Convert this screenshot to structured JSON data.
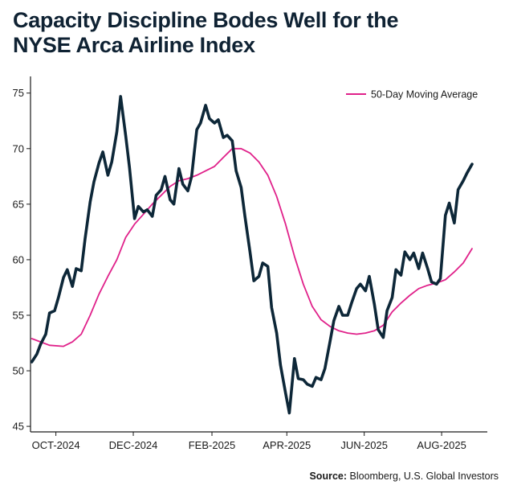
{
  "title_line1": "Capacity Discipline Bodes Well for the",
  "title_line2": "NYSE Arca Airline Index",
  "source_label": "Source:",
  "source_text": "Bloomberg, U.S. Global Investors",
  "colors": {
    "index_line": "#0d2738",
    "moving_average": "#e0218a",
    "axis": "#1a1a1a",
    "title": "#0f2233"
  },
  "chart_data": {
    "type": "line",
    "title": "Capacity Discipline Bodes Well for the NYSE Arca Airline Index",
    "xlabel": "",
    "ylabel": "",
    "ylim": [
      44.5,
      76.5
    ],
    "yticks": [
      45,
      50,
      55,
      60,
      65,
      70,
      75
    ],
    "xticks": [
      "OCT-2024",
      "DEC-2024",
      "FEB-2025",
      "APR-2025",
      "JUN-2025",
      "AUG-2025"
    ],
    "grid": false,
    "legend_position": "top-right",
    "series": [
      {
        "name": "",
        "color": "#0d2738",
        "points": [
          [
            "2024-09-12",
            50.8
          ],
          [
            "2024-09-16",
            51.5
          ],
          [
            "2024-09-19",
            52.4
          ],
          [
            "2024-09-23",
            53.3
          ],
          [
            "2024-09-26",
            55.2
          ],
          [
            "2024-09-30",
            55.4
          ],
          [
            "2024-10-03",
            56.6
          ],
          [
            "2024-10-07",
            58.4
          ],
          [
            "2024-10-10",
            59.1
          ],
          [
            "2024-10-14",
            57.6
          ],
          [
            "2024-10-17",
            59.2
          ],
          [
            "2024-10-21",
            59.0
          ],
          [
            "2024-10-24",
            61.9
          ],
          [
            "2024-10-28",
            65.2
          ],
          [
            "2024-10-31",
            67.0
          ],
          [
            "2024-11-04",
            68.7
          ],
          [
            "2024-11-07",
            69.7
          ],
          [
            "2024-11-11",
            67.6
          ],
          [
            "2024-11-14",
            68.8
          ],
          [
            "2024-11-18",
            71.5
          ],
          [
            "2024-11-21",
            74.7
          ],
          [
            "2024-11-25",
            71.2
          ],
          [
            "2024-11-28",
            68.3
          ],
          [
            "2024-12-02",
            63.7
          ],
          [
            "2024-12-05",
            64.8
          ],
          [
            "2024-12-09",
            64.3
          ],
          [
            "2024-12-12",
            64.5
          ],
          [
            "2024-12-16",
            63.9
          ],
          [
            "2024-12-19",
            65.8
          ],
          [
            "2024-12-23",
            66.3
          ],
          [
            "2024-12-26",
            67.5
          ],
          [
            "2024-12-30",
            65.4
          ],
          [
            "2025-01-02",
            65.0
          ],
          [
            "2025-01-06",
            68.2
          ],
          [
            "2025-01-09",
            66.8
          ],
          [
            "2025-01-13",
            66.2
          ],
          [
            "2025-01-16",
            67.5
          ],
          [
            "2025-01-20",
            71.7
          ],
          [
            "2025-01-23",
            72.3
          ],
          [
            "2025-01-27",
            73.9
          ],
          [
            "2025-01-30",
            72.7
          ],
          [
            "2025-02-03",
            72.3
          ],
          [
            "2025-02-06",
            72.6
          ],
          [
            "2025-02-10",
            71.0
          ],
          [
            "2025-02-13",
            71.2
          ],
          [
            "2025-02-17",
            70.7
          ],
          [
            "2025-02-20",
            68.0
          ],
          [
            "2025-02-24",
            66.5
          ],
          [
            "2025-02-27",
            63.9
          ],
          [
            "2025-03-03",
            60.7
          ],
          [
            "2025-03-06",
            58.1
          ],
          [
            "2025-03-10",
            58.5
          ],
          [
            "2025-03-13",
            59.7
          ],
          [
            "2025-03-17",
            59.4
          ],
          [
            "2025-03-20",
            55.7
          ],
          [
            "2025-03-24",
            53.4
          ],
          [
            "2025-03-27",
            50.5
          ],
          [
            "2025-03-31",
            48.0
          ],
          [
            "2025-04-03",
            46.2
          ],
          [
            "2025-04-07",
            51.1
          ],
          [
            "2025-04-10",
            49.3
          ],
          [
            "2025-04-14",
            49.2
          ],
          [
            "2025-04-17",
            48.8
          ],
          [
            "2025-04-21",
            48.6
          ],
          [
            "2025-04-24",
            49.4
          ],
          [
            "2025-04-28",
            49.2
          ],
          [
            "2025-05-01",
            50.2
          ],
          [
            "2025-05-05",
            52.6
          ],
          [
            "2025-05-08",
            54.5
          ],
          [
            "2025-05-12",
            55.8
          ],
          [
            "2025-05-15",
            55.0
          ],
          [
            "2025-05-19",
            55.0
          ],
          [
            "2025-05-22",
            56.1
          ],
          [
            "2025-05-26",
            57.4
          ],
          [
            "2025-05-29",
            57.8
          ],
          [
            "2025-06-02",
            57.2
          ],
          [
            "2025-06-05",
            58.5
          ],
          [
            "2025-06-09",
            56.0
          ],
          [
            "2025-06-12",
            53.7
          ],
          [
            "2025-06-16",
            53.0
          ],
          [
            "2025-06-19",
            55.4
          ],
          [
            "2025-06-23",
            56.6
          ],
          [
            "2025-06-26",
            59.1
          ],
          [
            "2025-06-30",
            58.6
          ],
          [
            "2025-07-03",
            60.7
          ],
          [
            "2025-07-07",
            60.0
          ],
          [
            "2025-07-10",
            60.6
          ],
          [
            "2025-07-14",
            59.2
          ],
          [
            "2025-07-17",
            60.6
          ],
          [
            "2025-07-21",
            59.2
          ],
          [
            "2025-07-24",
            58.0
          ],
          [
            "2025-07-28",
            57.8
          ],
          [
            "2025-07-31",
            58.3
          ],
          [
            "2025-08-04",
            64.0
          ],
          [
            "2025-08-07",
            65.1
          ],
          [
            "2025-08-11",
            63.3
          ],
          [
            "2025-08-14",
            66.3
          ],
          [
            "2025-08-18",
            67.1
          ],
          [
            "2025-08-21",
            67.8
          ],
          [
            "2025-08-25",
            68.6
          ]
        ]
      },
      {
        "name": "50-Day Moving Average",
        "color": "#e0218a",
        "points": [
          [
            "2024-09-12",
            52.9
          ],
          [
            "2024-09-19",
            52.6
          ],
          [
            "2024-09-26",
            52.3
          ],
          [
            "2024-10-07",
            52.2
          ],
          [
            "2024-10-14",
            52.6
          ],
          [
            "2024-10-21",
            53.3
          ],
          [
            "2024-10-28",
            55.0
          ],
          [
            "2024-11-04",
            56.9
          ],
          [
            "2024-11-11",
            58.5
          ],
          [
            "2024-11-18",
            60.0
          ],
          [
            "2024-11-25",
            62.0
          ],
          [
            "2024-12-02",
            63.2
          ],
          [
            "2024-12-09",
            64.1
          ],
          [
            "2024-12-16",
            65.0
          ],
          [
            "2024-12-23",
            65.8
          ],
          [
            "2024-12-30",
            66.6
          ],
          [
            "2025-01-06",
            67.1
          ],
          [
            "2025-01-13",
            67.3
          ],
          [
            "2025-01-20",
            67.6
          ],
          [
            "2025-01-27",
            68.0
          ],
          [
            "2025-02-03",
            68.4
          ],
          [
            "2025-02-10",
            69.2
          ],
          [
            "2025-02-17",
            70.0
          ],
          [
            "2025-02-24",
            70.0
          ],
          [
            "2025-03-03",
            69.6
          ],
          [
            "2025-03-10",
            68.8
          ],
          [
            "2025-03-17",
            67.6
          ],
          [
            "2025-03-24",
            65.7
          ],
          [
            "2025-03-31",
            63.2
          ],
          [
            "2025-04-07",
            60.3
          ],
          [
            "2025-04-14",
            57.8
          ],
          [
            "2025-04-21",
            55.8
          ],
          [
            "2025-04-28",
            54.6
          ],
          [
            "2025-05-05",
            54.0
          ],
          [
            "2025-05-12",
            53.6
          ],
          [
            "2025-05-19",
            53.4
          ],
          [
            "2025-05-26",
            53.3
          ],
          [
            "2025-06-02",
            53.4
          ],
          [
            "2025-06-09",
            53.6
          ],
          [
            "2025-06-16",
            54.1
          ],
          [
            "2025-06-23",
            55.3
          ],
          [
            "2025-06-30",
            56.1
          ],
          [
            "2025-07-07",
            56.8
          ],
          [
            "2025-07-14",
            57.4
          ],
          [
            "2025-07-21",
            57.7
          ],
          [
            "2025-07-28",
            57.9
          ],
          [
            "2025-08-04",
            58.2
          ],
          [
            "2025-08-11",
            58.9
          ],
          [
            "2025-08-18",
            59.7
          ],
          [
            "2025-08-25",
            61.0
          ]
        ]
      }
    ]
  }
}
